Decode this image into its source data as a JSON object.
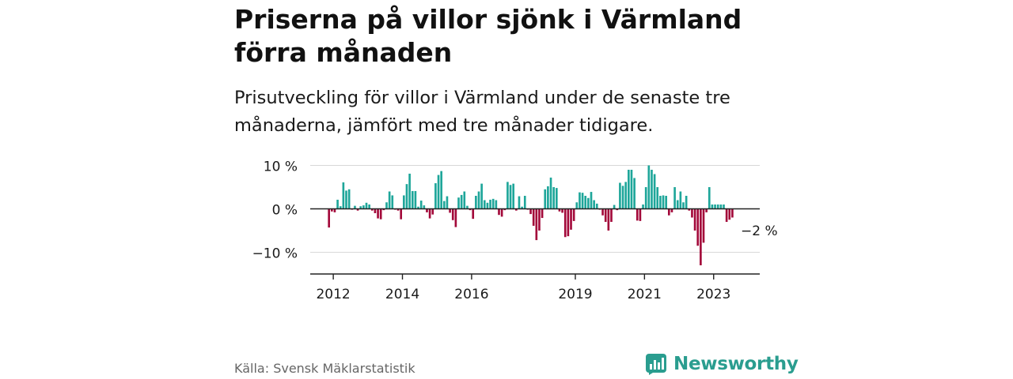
{
  "title": "Priserna på villor sjönk i Värmland förra månaden",
  "subtitle": "Prisutveckling för villor i Värmland under de senaste tre månaderna, jämfört med tre månader tidigare.",
  "source": "Källa: Svensk Mäklarstatistik",
  "brand": {
    "name": "Newsworthy",
    "icon": "newsworthy-logo-icon",
    "color": "#2a9d8f"
  },
  "colors": {
    "positive": "#1ea69a",
    "negative": "#a3093a",
    "grid": "#d8d8d8",
    "axis": "#222222"
  },
  "chart_data": {
    "type": "bar",
    "ylabel": "",
    "xlabel": "",
    "ylim": [
      -15,
      12
    ],
    "grid": true,
    "y_ticks": [
      10,
      0,
      -10
    ],
    "y_tick_labels": [
      "10 %",
      "0 %",
      "−10 %"
    ],
    "x_ticks": [
      {
        "label": "2012",
        "year": 2012.0
      },
      {
        "label": "2014",
        "year": 2014.0
      },
      {
        "label": "2016",
        "year": 2016.0
      },
      {
        "label": "2019",
        "year": 2019.0
      },
      {
        "label": "2021",
        "year": 2021.0
      },
      {
        "label": "2023",
        "year": 2023.0
      }
    ],
    "x_range": [
      "2011-05",
      "2024-05"
    ],
    "start_month": "2011-11",
    "end_annotation": "−2 %",
    "values": [
      -4.3,
      -0.6,
      -0.8,
      2.1,
      0.6,
      6.1,
      4.2,
      4.5,
      -0.2,
      0.7,
      -0.4,
      0.6,
      0.8,
      1.4,
      1.0,
      -0.4,
      -1.0,
      -2.2,
      -2.4,
      -0.3,
      1.5,
      4.0,
      3.1,
      -0.2,
      -0.4,
      -2.4,
      3.1,
      5.7,
      8.1,
      4.1,
      4.1,
      0.5,
      1.9,
      0.8,
      -0.8,
      -2.2,
      -1.3,
      5.9,
      7.8,
      8.7,
      1.8,
      2.9,
      -0.9,
      -2.6,
      -4.2,
      2.6,
      3.2,
      4.0,
      0.7,
      -0.3,
      -2.3,
      3.0,
      4.0,
      5.8,
      2.0,
      1.4,
      2.1,
      2.3,
      2.0,
      -1.4,
      -1.8,
      -0.3,
      6.2,
      5.5,
      5.8,
      -0.4,
      2.9,
      0.5,
      3.0,
      -0.2,
      -1.2,
      -3.9,
      -7.2,
      -5.0,
      -2.1,
      4.5,
      5.2,
      7.2,
      5.0,
      4.8,
      -0.6,
      -0.9,
      -6.5,
      -6.3,
      -4.8,
      -2.8,
      1.5,
      3.8,
      3.7,
      3.0,
      2.5,
      3.9,
      2.0,
      1.2,
      -0.2,
      -1.5,
      -3.0,
      -5.0,
      -3.0,
      0.9,
      -0.3,
      6.0,
      5.3,
      6.2,
      9.0,
      9.0,
      7.1,
      -2.7,
      -2.8,
      1.0,
      5.0,
      10.0,
      9.0,
      8.0,
      5.0,
      3.0,
      3.1,
      3.0,
      -1.5,
      -0.8,
      5.0,
      2.0,
      4.0,
      1.5,
      3.0,
      -0.4,
      -2.0,
      -5.0,
      -8.5,
      -13.0,
      -7.8,
      -0.8,
      5.0,
      1.0,
      1.0,
      1.0,
      1.0,
      1.0,
      -3.0,
      -2.5,
      -2.0
    ]
  }
}
